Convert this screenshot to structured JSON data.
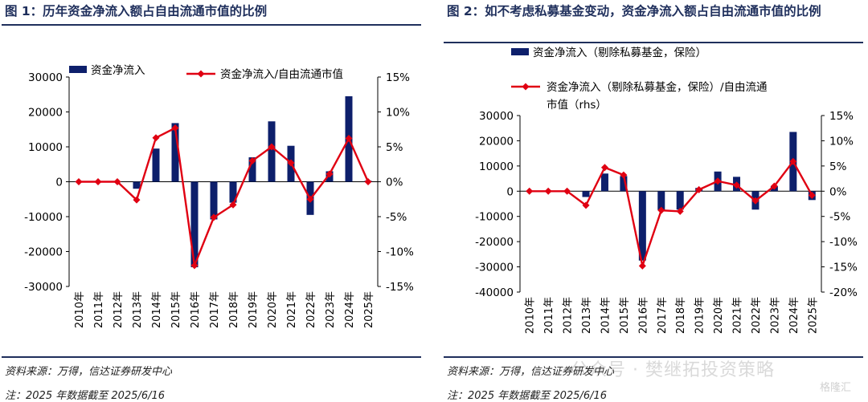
{
  "figures": [
    {
      "title": "图 1：历年资金净流入额占自由流通市值的比例",
      "legend_bar": "资金净流入",
      "legend_line": "资金净流入/自由流通市值",
      "source": "资料来源：万得，信达证券研发中心",
      "note": "注：2025 年数据截至 2025/6/16"
    },
    {
      "title": "图 2：如不考虑私募基金变动，资金净流入额占自由流通市值的比例",
      "legend_bar": "资金净流入（剔除私募基金，保险）",
      "legend_line": "资金净流入（剔除私募基金，保险）/自由流通市值（rhs）",
      "source": "资料来源：万得，信达证券研发中心",
      "note": "注：2025 年数据截至 2025/6/16"
    }
  ],
  "watermark": "公众号 · 樊继拓投资策略",
  "watermark_small": "格隆汇",
  "colors": {
    "bar": "#0d1f6b",
    "line": "#e00012",
    "axis": "#000000",
    "title": "#1f2f5c"
  },
  "chart_data": [
    {
      "type": "bar+line",
      "categories": [
        "2010年",
        "2011年",
        "2012年",
        "2013年",
        "2014年",
        "2015年",
        "2016年",
        "2017年",
        "2018年",
        "2019年",
        "2020年",
        "2021年",
        "2022年",
        "2023年",
        "2024年",
        "2025年"
      ],
      "series": [
        {
          "name": "资金净流入",
          "type": "bar",
          "axis": "left",
          "values": [
            0,
            0,
            0,
            -2000,
            9500,
            16800,
            -24500,
            -10800,
            -6000,
            7000,
            17300,
            10300,
            -9500,
            3000,
            24500,
            300
          ]
        },
        {
          "name": "资金净流入/自由流通市值",
          "type": "line",
          "axis": "right",
          "values": [
            0,
            0,
            0,
            -2.6,
            6.3,
            7.7,
            -12.0,
            -5.1,
            -3.3,
            3.0,
            5.0,
            2.7,
            -2.5,
            1.1,
            6.2,
            0
          ]
        }
      ],
      "ylim_left": [
        -30000,
        30000
      ],
      "yticks_left": [
        -30000,
        -20000,
        -10000,
        0,
        10000,
        20000,
        30000
      ],
      "ytick_labels_left": [
        "-30000",
        "-20000",
        "-10000",
        "0",
        "10000",
        "20000",
        "30000"
      ],
      "ylim_right": [
        -15,
        15
      ],
      "yticks_right": [
        -15,
        -10,
        -5,
        0,
        5,
        10,
        15
      ],
      "ytick_labels_right": [
        "-15%",
        "-10%",
        "-5%",
        "0%",
        "5%",
        "10%",
        "15%"
      ],
      "legend_position": "top"
    },
    {
      "type": "bar+line",
      "categories": [
        "2010年",
        "2011年",
        "2012年",
        "2013年",
        "2014年",
        "2015年",
        "2016年",
        "2017年",
        "2018年",
        "2019年",
        "2020年",
        "2021年",
        "2022年",
        "2023年",
        "2024年",
        "2025年"
      ],
      "series": [
        {
          "name": "资金净流入（剔除私募基金，保险）",
          "type": "bar",
          "axis": "left",
          "values": [
            0,
            0,
            0,
            -2300,
            7000,
            6000,
            -27500,
            -7500,
            -7300,
            1300,
            7800,
            5700,
            -7300,
            2000,
            23500,
            -3500
          ]
        },
        {
          "name": "资金净流入（剔除私募基金，保险）/自由流通市值（rhs）",
          "type": "line",
          "axis": "right",
          "values": [
            0,
            0,
            0,
            -2.8,
            4.7,
            3.2,
            -14.8,
            -3.8,
            -4.0,
            0.3,
            2.0,
            1.2,
            -1.9,
            1.0,
            5.9,
            -0.8
          ]
        }
      ],
      "ylim_left": [
        -40000,
        30000
      ],
      "yticks_left": [
        -40000,
        -30000,
        -20000,
        -10000,
        0,
        10000,
        20000,
        30000
      ],
      "ytick_labels_left": [
        "-40000",
        "-30000",
        "-20000",
        "-10000",
        "0",
        "10000",
        "20000",
        "30000"
      ],
      "ylim_right": [
        -20,
        15
      ],
      "yticks_right": [
        -20,
        -15,
        -10,
        -5,
        0,
        5,
        10,
        15
      ],
      "ytick_labels_right": [
        "-20%",
        "-15%",
        "-10%",
        "-5%",
        "0%",
        "5%",
        "10%",
        "15%"
      ],
      "legend_position": "top"
    }
  ]
}
